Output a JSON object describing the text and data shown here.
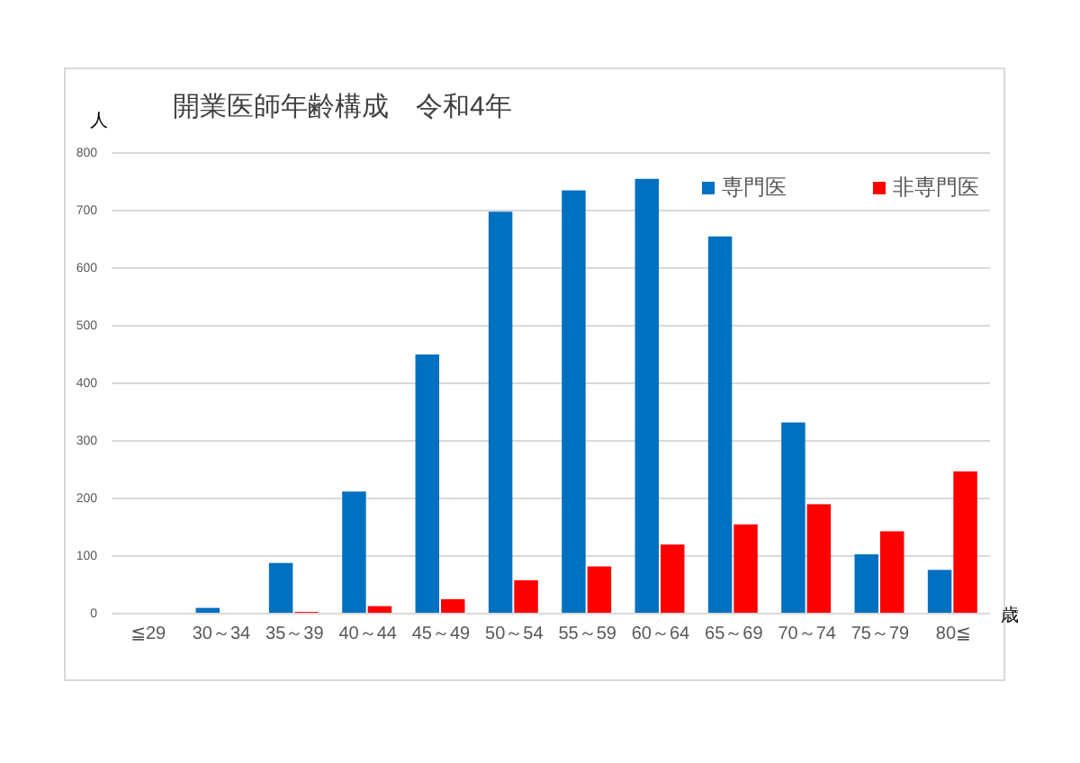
{
  "chart_data": {
    "type": "bar",
    "title": "開業医師年齢構成　令和4年",
    "ylabel": "人",
    "xlabel": "歳",
    "categories": [
      "≦29",
      "30～34",
      "35～39",
      "40～44",
      "45～49",
      "50～54",
      "55～59",
      "60～64",
      "65～69",
      "70～74",
      "75～79",
      "80≦"
    ],
    "series": [
      {
        "name": "専門医",
        "color": "#0070c0",
        "values": [
          0,
          10,
          88,
          212,
          450,
          698,
          735,
          755,
          655,
          332,
          103,
          76
        ]
      },
      {
        "name": "非専門医",
        "color": "#ff0000",
        "values": [
          0,
          0,
          3,
          13,
          25,
          58,
          82,
          120,
          155,
          190,
          143,
          247
        ]
      }
    ],
    "ylim": [
      0,
      800
    ],
    "yticks": [
      0,
      100,
      200,
      300,
      400,
      500,
      600,
      700,
      800
    ],
    "grid": "y",
    "legend": "top right"
  }
}
